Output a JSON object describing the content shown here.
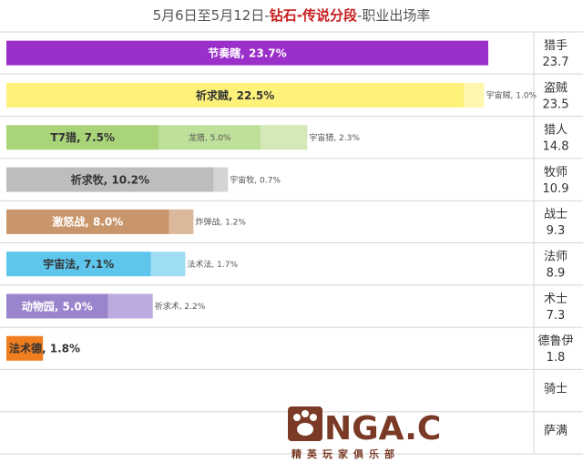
{
  "title": {
    "prefix": "5月6日至5月12日-",
    "highlight": "钻石-传说分段",
    "suffix": "-职业出场率"
  },
  "watermark": {
    "logo_text": "NGA.CN",
    "sub_text": "精英玩家俱乐部"
  },
  "chart_data": {
    "type": "bar",
    "stacked": true,
    "orientation": "horizontal",
    "title": "5月6日至5月12日-钻石-传说分段-职业出场率",
    "xlim": [
      0,
      24
    ],
    "grid": true,
    "classes": [
      {
        "name": "猎手",
        "total": "23.7",
        "segments": [
          {
            "label": "节奏瞎",
            "value": 23.7,
            "color": "#9b2fc9"
          }
        ]
      },
      {
        "name": "盗贼",
        "total": "23.5",
        "segments": [
          {
            "label": "祈求贼",
            "value": 22.5,
            "color": "#fff27a"
          },
          {
            "label": "宇宙贼",
            "value": 1.0,
            "color": "#fff7ad"
          }
        ]
      },
      {
        "name": "猎人",
        "total": "14.8",
        "segments": [
          {
            "label": "T7猎",
            "value": 7.5,
            "color": "#a9d47a"
          },
          {
            "label": "龙猎",
            "value": 5.0,
            "color": "#bfe09a"
          },
          {
            "label": "宇宙猎",
            "value": 2.3,
            "color": "#d3e9b7"
          }
        ]
      },
      {
        "name": "牧师",
        "total": "10.9",
        "segments": [
          {
            "label": "祈求牧",
            "value": 10.2,
            "color": "#bdbdbd"
          },
          {
            "label": "宇宙牧",
            "value": 0.7,
            "color": "#d4d4d4"
          }
        ]
      },
      {
        "name": "战士",
        "total": "9.3",
        "segments": [
          {
            "label": "激怒战",
            "value": 8.0,
            "color": "#c8966a"
          },
          {
            "label": "炸弹战",
            "value": 1.2,
            "color": "#dcb89a"
          }
        ]
      },
      {
        "name": "法师",
        "total": "8.9",
        "segments": [
          {
            "label": "宇宙法",
            "value": 7.1,
            "color": "#5ec6ec"
          },
          {
            "label": "法术法",
            "value": 1.7,
            "color": "#9fddf4"
          }
        ]
      },
      {
        "name": "术士",
        "total": "7.3",
        "segments": [
          {
            "label": "动物园",
            "value": 5.0,
            "color": "#9a84cc"
          },
          {
            "label": "祈求术",
            "value": 2.2,
            "color": "#baaade"
          }
        ]
      },
      {
        "name": "德鲁伊",
        "total": "1.8",
        "segments": [
          {
            "label": "法术德",
            "value": 1.8,
            "color": "#f07d1e"
          }
        ]
      },
      {
        "name": "骑士",
        "total": "",
        "segments": []
      },
      {
        "name": "萨满",
        "total": "",
        "segments": []
      }
    ]
  }
}
